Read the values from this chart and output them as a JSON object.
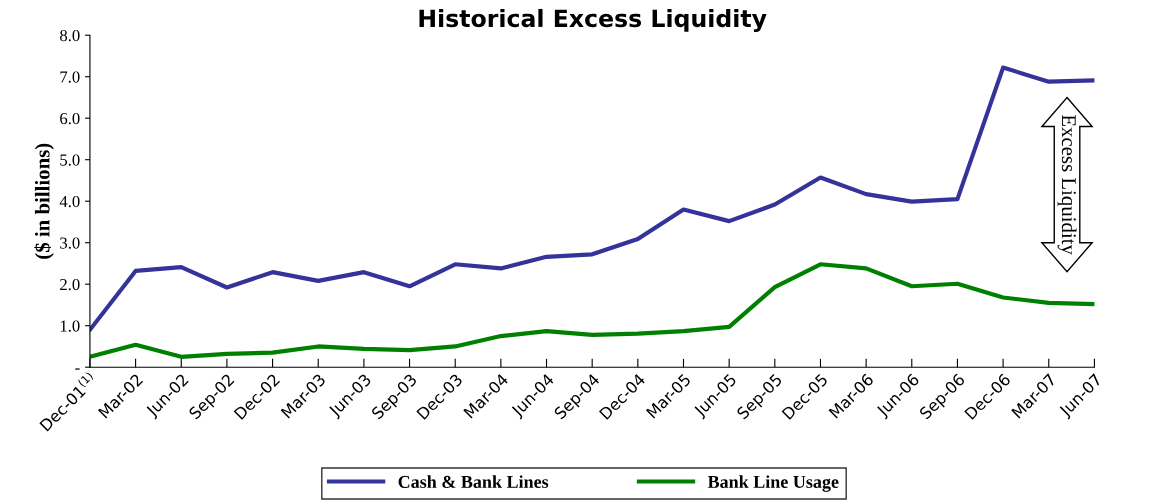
{
  "chart_data": {
    "type": "line",
    "title": "Historical Excess Liquidity",
    "ylabel": "($ in billions)",
    "categories": [
      "Dec-01$^{(1)}$",
      "Mar-02",
      "Jun-02",
      "Sep-02",
      "Dec-02",
      "Mar-03",
      "Jun-03",
      "Sep-03",
      "Dec-03",
      "Mar-04",
      "Jun-04",
      "Sep-04",
      "Dec-04",
      "Mar-05",
      "Jun-05",
      "Sep-05",
      "Dec-05",
      "Mar-06",
      "Jun-06",
      "Sep-06",
      "Dec-06",
      "Mar-07",
      "Jun-07"
    ],
    "series": [
      {
        "name": "Cash & Bank Lines",
        "color": "#333399",
        "values": [
          0.9,
          2.32,
          2.41,
          1.92,
          2.29,
          2.08,
          2.29,
          1.95,
          2.48,
          2.38,
          2.66,
          2.72,
          3.09,
          3.8,
          3.52,
          3.92,
          4.57,
          4.17,
          3.99,
          4.05,
          7.22,
          6.88,
          6.91
        ]
      },
      {
        "name": "Bank Line Usage",
        "color": "#008000",
        "values": [
          0.25,
          0.54,
          0.25,
          0.32,
          0.35,
          0.5,
          0.44,
          0.41,
          0.5,
          0.75,
          0.87,
          0.78,
          0.81,
          0.87,
          0.97,
          1.93,
          2.48,
          2.38,
          1.95,
          2.01,
          1.68,
          1.55,
          1.52
        ]
      }
    ],
    "ylim": [
      0,
      8
    ],
    "yticks": [
      {
        "value": 0,
        "label": "-"
      },
      {
        "value": 1,
        "label": "1.0"
      },
      {
        "value": 2,
        "label": "2.0"
      },
      {
        "value": 3,
        "label": "3.0"
      },
      {
        "value": 4,
        "label": "4.0"
      },
      {
        "value": 5,
        "label": "5.0"
      },
      {
        "value": 6,
        "label": "6.0"
      },
      {
        "value": 7,
        "label": "7.0"
      },
      {
        "value": 8,
        "label": "8.0"
      }
    ],
    "annotations": [
      "Excess Liquidity"
    ],
    "legend": "bottom",
    "grid": false,
    "marker": "none",
    "line_style": "solid"
  }
}
